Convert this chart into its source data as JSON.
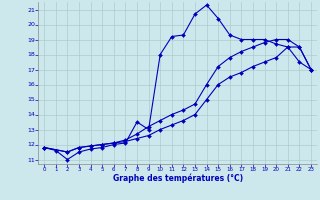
{
  "xlabel": "Graphe des températures (°C)",
  "xlim": [
    -0.5,
    23.5
  ],
  "ylim": [
    10.7,
    21.5
  ],
  "yticks": [
    11,
    12,
    13,
    14,
    15,
    16,
    17,
    18,
    19,
    20,
    21
  ],
  "xticks": [
    0,
    1,
    2,
    3,
    4,
    5,
    6,
    7,
    8,
    9,
    10,
    11,
    12,
    13,
    14,
    15,
    16,
    17,
    18,
    19,
    20,
    21,
    22,
    23
  ],
  "bg_color": "#cce8ec",
  "grid_color": "#aacccc",
  "line_color": "#0000bb",
  "line1_x": [
    0,
    1,
    2,
    3,
    4,
    5,
    6,
    7,
    8,
    9,
    10,
    11,
    12,
    13,
    14,
    15,
    16,
    17,
    18,
    19,
    20,
    21,
    22,
    23
  ],
  "line1_y": [
    11.8,
    11.6,
    11.0,
    11.5,
    11.7,
    11.8,
    12.0,
    12.1,
    13.5,
    13.0,
    18.0,
    19.2,
    19.3,
    20.7,
    21.3,
    20.4,
    19.3,
    19.0,
    19.0,
    19.0,
    18.7,
    18.5,
    17.5,
    17.0
  ],
  "line2_x": [
    0,
    2,
    3,
    4,
    5,
    6,
    7,
    8,
    9,
    10,
    11,
    12,
    13,
    14,
    15,
    16,
    17,
    18,
    19,
    20,
    21,
    22,
    23
  ],
  "line2_y": [
    11.8,
    11.5,
    11.8,
    11.9,
    12.0,
    12.1,
    12.2,
    12.4,
    12.6,
    13.0,
    13.3,
    13.6,
    14.0,
    15.0,
    16.0,
    16.5,
    16.8,
    17.2,
    17.5,
    17.8,
    18.5,
    18.5,
    17.0
  ],
  "line3_x": [
    0,
    2,
    3,
    4,
    5,
    6,
    7,
    8,
    9,
    10,
    11,
    12,
    13,
    14,
    15,
    16,
    17,
    18,
    19,
    20,
    21,
    22,
    23
  ],
  "line3_y": [
    11.8,
    11.5,
    11.8,
    11.9,
    12.0,
    12.1,
    12.3,
    12.7,
    13.2,
    13.6,
    14.0,
    14.3,
    14.7,
    16.0,
    17.2,
    17.8,
    18.2,
    18.5,
    18.8,
    19.0,
    19.0,
    18.5,
    17.0
  ]
}
